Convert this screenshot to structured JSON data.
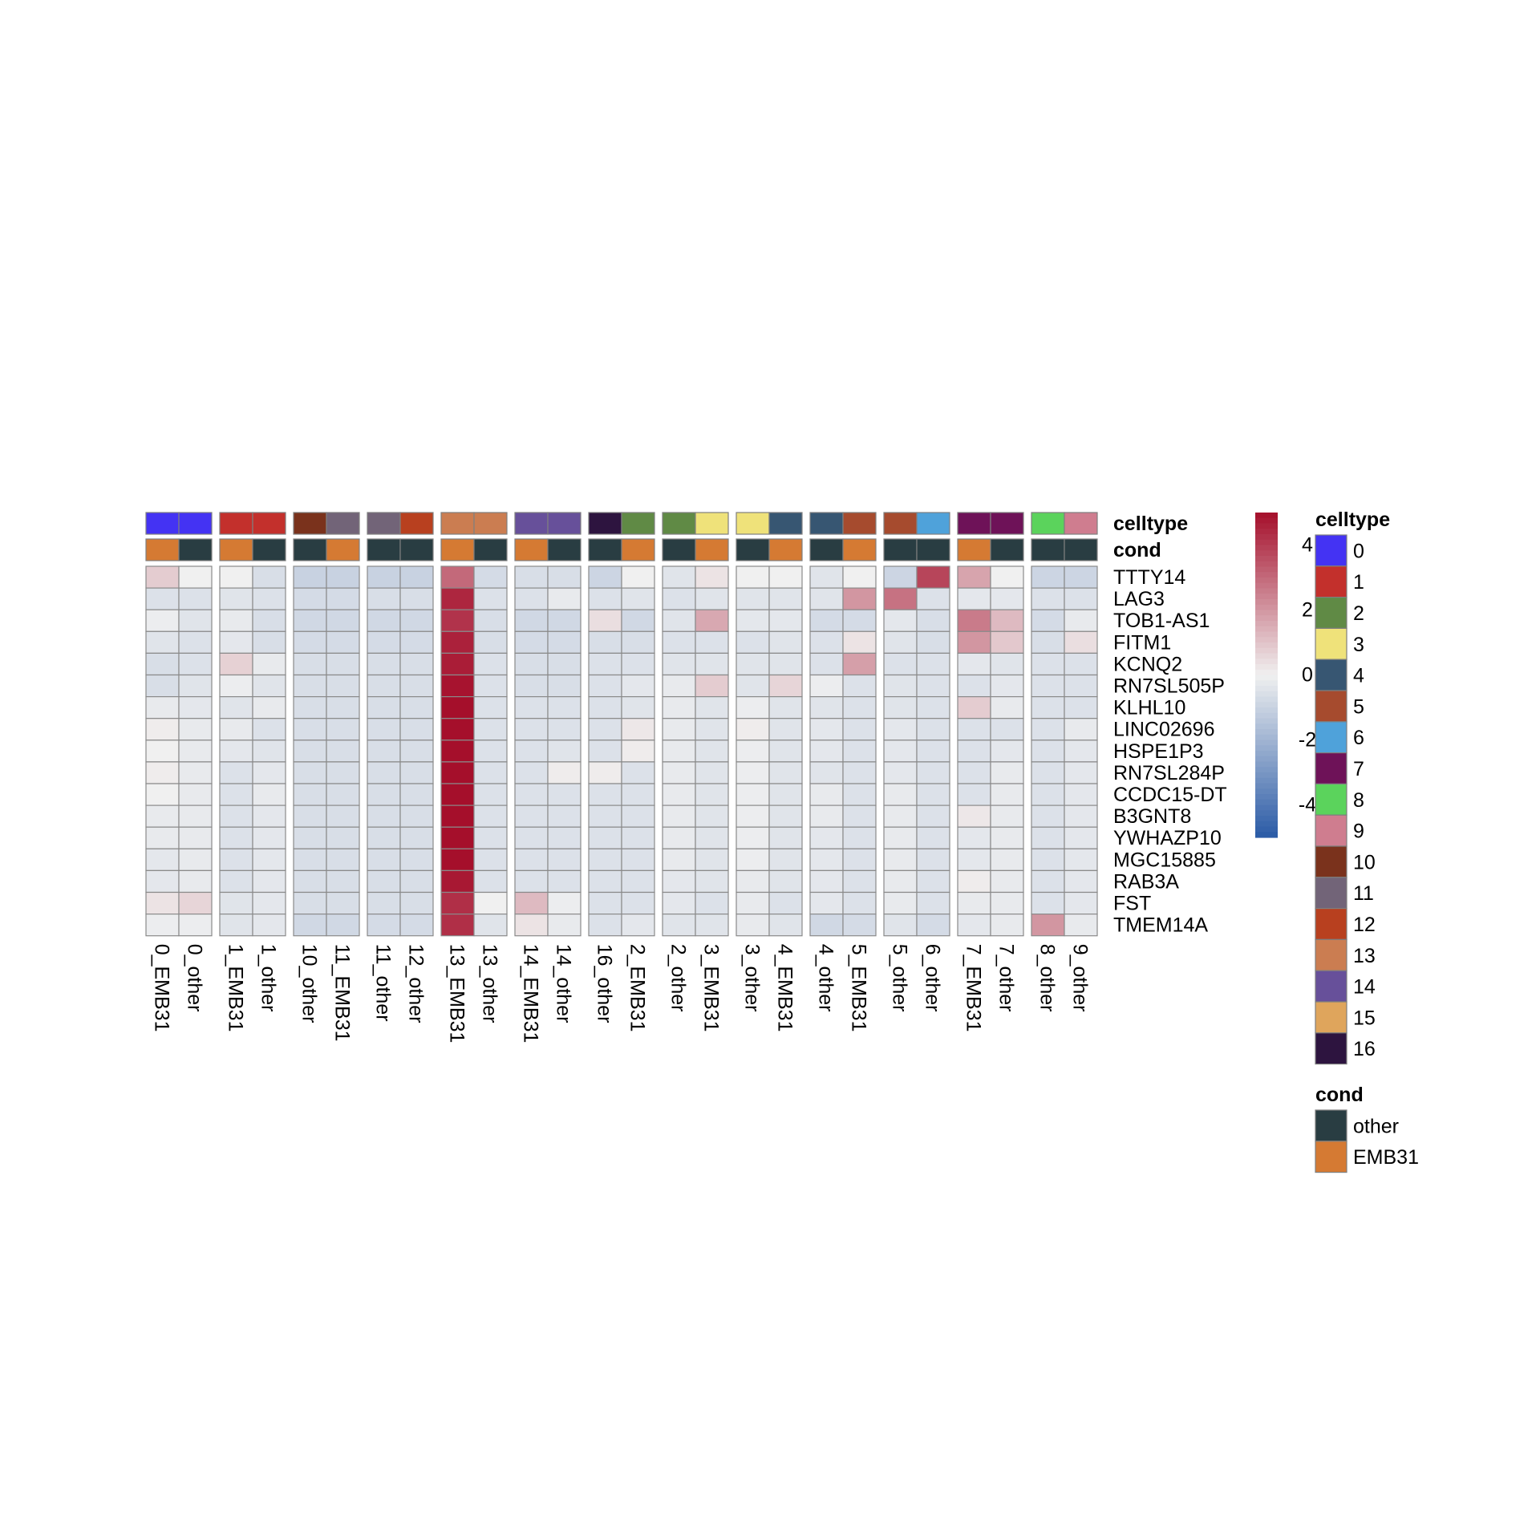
{
  "chart_data": {
    "type": "heatmap",
    "annotation_titles": [
      "celltype",
      "cond"
    ],
    "columns": [
      {
        "label": "0_EMB31",
        "celltype": "0",
        "cond": "EMB31"
      },
      {
        "label": "0_other",
        "celltype": "0",
        "cond": "other"
      },
      {
        "label": "1_EMB31",
        "celltype": "1",
        "cond": "EMB31"
      },
      {
        "label": "1_other",
        "celltype": "1",
        "cond": "other"
      },
      {
        "label": "10_other",
        "celltype": "10",
        "cond": "other"
      },
      {
        "label": "11_EMB31",
        "celltype": "11",
        "cond": "EMB31"
      },
      {
        "label": "11_other",
        "celltype": "11",
        "cond": "other"
      },
      {
        "label": "12_other",
        "celltype": "12",
        "cond": "other"
      },
      {
        "label": "13_EMB31",
        "celltype": "13",
        "cond": "EMB31"
      },
      {
        "label": "13_other",
        "celltype": "13",
        "cond": "other"
      },
      {
        "label": "14_EMB31",
        "celltype": "14",
        "cond": "EMB31"
      },
      {
        "label": "14_other",
        "celltype": "14",
        "cond": "other"
      },
      {
        "label": "16_other",
        "celltype": "16",
        "cond": "other"
      },
      {
        "label": "2_EMB31",
        "celltype": "2",
        "cond": "EMB31"
      },
      {
        "label": "2_other",
        "celltype": "2",
        "cond": "other"
      },
      {
        "label": "3_EMB31",
        "celltype": "3",
        "cond": "EMB31"
      },
      {
        "label": "3_other",
        "celltype": "3",
        "cond": "other"
      },
      {
        "label": "4_EMB31",
        "celltype": "4",
        "cond": "EMB31"
      },
      {
        "label": "4_other",
        "celltype": "4",
        "cond": "other"
      },
      {
        "label": "5_EMB31",
        "celltype": "5",
        "cond": "EMB31"
      },
      {
        "label": "5_other",
        "celltype": "5",
        "cond": "other"
      },
      {
        "label": "6_other",
        "celltype": "6",
        "cond": "other"
      },
      {
        "label": "7_EMB31",
        "celltype": "7",
        "cond": "EMB31"
      },
      {
        "label": "7_other",
        "celltype": "7",
        "cond": "other"
      },
      {
        "label": "8_other",
        "celltype": "8",
        "cond": "other"
      },
      {
        "label": "9_other",
        "celltype": "9",
        "cond": "other"
      }
    ],
    "rows": [
      "TTTY14",
      "LAG3",
      "TOB1-AS1",
      "FITM1",
      "KCNQ2",
      "RN7SL505P",
      "KLHL10",
      "LINC02696",
      "HSPE1P3",
      "RN7SL284P",
      "CCDC15-DT",
      "B3GNT8",
      "YWHAZP10",
      "MGC15885",
      "RAB3A",
      "FST",
      "TMEM14A"
    ],
    "values": [
      [
        0.8,
        0.0,
        0.0,
        -0.6,
        -1.0,
        -1.0,
        -1.0,
        -1.0,
        3.0,
        -0.7,
        -0.6,
        -0.6,
        -0.9,
        0.0,
        -0.4,
        0.3,
        0.0,
        0.0,
        -0.4,
        0.0,
        -0.9,
        3.8,
        1.7,
        0.0,
        -0.9,
        -0.9
      ],
      [
        -0.5,
        -0.5,
        -0.4,
        -0.5,
        -0.7,
        -0.7,
        -0.6,
        -0.6,
        4.5,
        -0.5,
        -0.5,
        -0.2,
        -0.5,
        -0.4,
        -0.5,
        -0.4,
        -0.4,
        -0.4,
        -0.4,
        2.0,
        2.8,
        -0.5,
        -0.3,
        -0.3,
        -0.5,
        -0.5
      ],
      [
        -0.1,
        -0.4,
        -0.2,
        -0.6,
        -0.8,
        -0.8,
        -0.8,
        -0.8,
        4.2,
        -0.6,
        -0.8,
        -0.8,
        0.4,
        -0.8,
        -0.4,
        1.6,
        -0.3,
        -0.3,
        -0.7,
        -0.7,
        -0.3,
        -0.6,
        2.6,
        1.2,
        -0.7,
        -0.2
      ],
      [
        -0.4,
        -0.5,
        -0.3,
        -0.6,
        -0.7,
        -0.7,
        -0.7,
        -0.7,
        4.6,
        -0.6,
        -0.7,
        -0.7,
        -0.6,
        -0.6,
        -0.5,
        -0.5,
        -0.5,
        -0.4,
        -0.5,
        0.3,
        -0.4,
        -0.6,
        2.0,
        0.9,
        -0.6,
        0.4
      ],
      [
        -0.6,
        -0.5,
        0.7,
        -0.2,
        -0.6,
        -0.6,
        -0.6,
        -0.6,
        4.7,
        -0.5,
        -0.6,
        -0.6,
        -0.5,
        -0.5,
        -0.4,
        -0.4,
        -0.4,
        -0.4,
        -0.5,
        1.8,
        -0.5,
        -0.5,
        -0.3,
        -0.4,
        -0.5,
        -0.5
      ],
      [
        -0.6,
        -0.4,
        -0.1,
        -0.4,
        -0.6,
        -0.6,
        -0.6,
        -0.6,
        4.9,
        -0.5,
        -0.6,
        -0.6,
        -0.5,
        -0.3,
        -0.2,
        0.8,
        -0.4,
        0.6,
        -0.1,
        -0.5,
        -0.4,
        -0.5,
        -0.5,
        -0.3,
        -0.5,
        -0.5
      ],
      [
        -0.2,
        -0.3,
        -0.4,
        -0.2,
        -0.6,
        -0.6,
        -0.6,
        -0.6,
        5.0,
        -0.5,
        -0.5,
        -0.5,
        -0.5,
        -0.4,
        -0.2,
        -0.4,
        -0.1,
        -0.4,
        -0.4,
        -0.5,
        -0.4,
        -0.5,
        0.8,
        -0.2,
        -0.5,
        -0.5
      ],
      [
        0.1,
        -0.2,
        -0.2,
        -0.5,
        -0.6,
        -0.6,
        -0.6,
        -0.6,
        5.0,
        -0.5,
        -0.5,
        -0.5,
        -0.5,
        0.2,
        -0.2,
        -0.4,
        0.1,
        -0.4,
        -0.3,
        -0.5,
        -0.3,
        -0.5,
        -0.5,
        -0.5,
        -0.5,
        -0.2
      ],
      [
        0.0,
        -0.2,
        -0.3,
        -0.4,
        -0.6,
        -0.6,
        -0.6,
        -0.6,
        5.0,
        -0.5,
        -0.5,
        -0.4,
        -0.5,
        0.1,
        -0.2,
        -0.4,
        -0.1,
        -0.4,
        -0.3,
        -0.5,
        -0.3,
        -0.5,
        -0.5,
        -0.3,
        -0.5,
        -0.3
      ],
      [
        0.1,
        -0.2,
        -0.5,
        -0.3,
        -0.6,
        -0.6,
        -0.6,
        -0.6,
        5.0,
        -0.5,
        -0.5,
        0.1,
        0.1,
        -0.5,
        -0.2,
        -0.4,
        -0.1,
        -0.4,
        -0.4,
        -0.5,
        -0.3,
        -0.5,
        -0.5,
        -0.2,
        -0.5,
        -0.3
      ],
      [
        0.0,
        -0.2,
        -0.5,
        -0.2,
        -0.6,
        -0.6,
        -0.6,
        -0.6,
        5.0,
        -0.5,
        -0.5,
        -0.5,
        -0.5,
        -0.5,
        -0.2,
        -0.4,
        -0.1,
        -0.4,
        -0.2,
        -0.5,
        -0.2,
        -0.5,
        -0.5,
        -0.2,
        -0.5,
        -0.3
      ],
      [
        -0.2,
        -0.2,
        -0.5,
        -0.3,
        -0.6,
        -0.6,
        -0.6,
        -0.6,
        5.0,
        -0.5,
        -0.5,
        -0.5,
        -0.5,
        -0.5,
        -0.2,
        -0.4,
        -0.1,
        -0.4,
        -0.2,
        -0.5,
        -0.2,
        -0.5,
        0.2,
        -0.2,
        -0.5,
        -0.3
      ],
      [
        -0.2,
        -0.2,
        -0.5,
        -0.3,
        -0.6,
        -0.6,
        -0.6,
        -0.6,
        5.0,
        -0.5,
        -0.5,
        -0.5,
        -0.5,
        -0.5,
        -0.2,
        -0.4,
        -0.1,
        -0.4,
        -0.3,
        -0.5,
        -0.2,
        -0.5,
        -0.3,
        -0.2,
        -0.5,
        -0.3
      ],
      [
        -0.3,
        -0.2,
        -0.5,
        -0.3,
        -0.6,
        -0.6,
        -0.6,
        -0.6,
        5.0,
        -0.5,
        -0.5,
        -0.5,
        -0.5,
        -0.5,
        -0.2,
        -0.4,
        -0.1,
        -0.4,
        -0.3,
        -0.5,
        -0.2,
        -0.5,
        -0.3,
        -0.2,
        -0.5,
        -0.3
      ],
      [
        -0.3,
        -0.2,
        -0.5,
        -0.3,
        -0.6,
        -0.6,
        -0.6,
        -0.6,
        4.8,
        -0.5,
        -0.5,
        -0.5,
        -0.5,
        -0.5,
        -0.3,
        -0.4,
        -0.2,
        -0.4,
        -0.3,
        -0.5,
        -0.2,
        -0.5,
        0.1,
        -0.2,
        -0.5,
        -0.3
      ],
      [
        0.3,
        0.6,
        -0.4,
        -0.3,
        -0.6,
        -0.6,
        -0.6,
        -0.6,
        4.3,
        0.0,
        1.2,
        -0.1,
        -0.5,
        -0.5,
        -0.3,
        -0.5,
        -0.2,
        -0.5,
        -0.3,
        -0.5,
        -0.2,
        -0.5,
        -0.2,
        -0.2,
        -0.5,
        -0.3
      ],
      [
        -0.1,
        -0.1,
        -0.4,
        -0.3,
        -0.8,
        -0.8,
        -0.7,
        -0.7,
        4.3,
        -0.4,
        0.3,
        -0.2,
        -0.5,
        -0.3,
        -0.4,
        -0.4,
        -0.2,
        -0.4,
        -0.8,
        -0.7,
        -0.4,
        -0.7,
        -0.3,
        -0.2,
        2.0,
        -0.2
      ]
    ],
    "color_scale": {
      "ticks": [
        4,
        2,
        0,
        -2,
        -4
      ],
      "min": -5,
      "max": 5,
      "low_color": "#2a5aa6",
      "mid_color": "#f0f0f0",
      "high_color": "#a50f2b"
    },
    "legends": {
      "celltype": {
        "title": "celltype",
        "items": [
          {
            "label": "0",
            "color": "#4433f3"
          },
          {
            "label": "1",
            "color": "#c3302c"
          },
          {
            "label": "2",
            "color": "#608a45"
          },
          {
            "label": "3",
            "color": "#efe27a"
          },
          {
            "label": "4",
            "color": "#375672"
          },
          {
            "label": "5",
            "color": "#a64b2e"
          },
          {
            "label": "6",
            "color": "#4fa2da"
          },
          {
            "label": "7",
            "color": "#6e1258"
          },
          {
            "label": "8",
            "color": "#5bd35c"
          },
          {
            "label": "9",
            "color": "#cf7d8f"
          },
          {
            "label": "10",
            "color": "#7a321c"
          },
          {
            "label": "11",
            "color": "#726478"
          },
          {
            "label": "12",
            "color": "#b8401f"
          },
          {
            "label": "13",
            "color": "#cb7d51"
          },
          {
            "label": "14",
            "color": "#67509a"
          },
          {
            "label": "15",
            "color": "#dfa55c"
          },
          {
            "label": "16",
            "color": "#2d143f"
          }
        ]
      },
      "cond": {
        "title": "cond",
        "items": [
          {
            "label": "other",
            "color": "#293d42"
          },
          {
            "label": "EMB31",
            "color": "#d57a33"
          }
        ]
      }
    }
  }
}
